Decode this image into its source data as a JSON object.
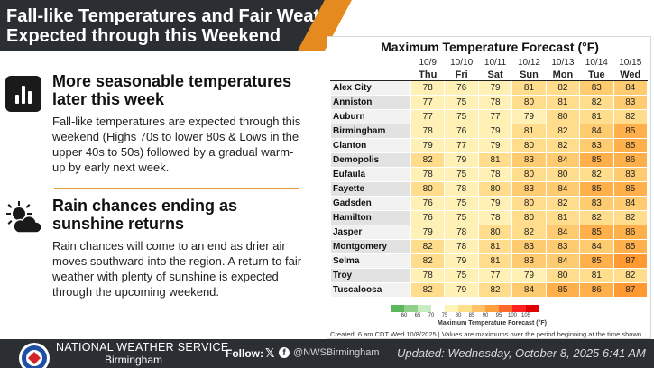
{
  "header": {
    "title_line1": "Fall-like Temperatures and Fair Weather",
    "title_line2": "Expected through this Weekend"
  },
  "sections": [
    {
      "icon": "bar-chart-icon",
      "title": "More seasonable temperatures later this week",
      "body": "Fall-like temperatures are expected through this weekend (Highs 70s to lower 80s & Lows in the upper 40s to 50s) followed by a gradual warm-up by early next week."
    },
    {
      "icon": "partly-cloudy-icon",
      "title": "Rain chances ending as sunshine returns",
      "body": "Rain chances will come to an end as drier air moves southward into the region. A return to fair weather with plenty of sunshine is expected through the upcoming weekend."
    }
  ],
  "forecast": {
    "title": "Maximum Temperature Forecast (°F)",
    "dates": [
      "10/9",
      "10/10",
      "10/11",
      "10/12",
      "10/13",
      "10/14",
      "10/15"
    ],
    "days": [
      "Thu",
      "Fri",
      "Sat",
      "Sun",
      "Mon",
      "Tue",
      "Wed"
    ],
    "rows": [
      {
        "city": "Alex City",
        "values": [
          78,
          76,
          79,
          81,
          82,
          83,
          84
        ]
      },
      {
        "city": "Anniston",
        "values": [
          77,
          75,
          78,
          80,
          81,
          82,
          83
        ]
      },
      {
        "city": "Auburn",
        "values": [
          77,
          75,
          77,
          79,
          80,
          81,
          82
        ]
      },
      {
        "city": "Birmingham",
        "values": [
          78,
          76,
          79,
          81,
          82,
          84,
          85
        ]
      },
      {
        "city": "Clanton",
        "values": [
          79,
          77,
          79,
          80,
          82,
          83,
          85
        ]
      },
      {
        "city": "Demopolis",
        "values": [
          82,
          79,
          81,
          83,
          84,
          85,
          86
        ]
      },
      {
        "city": "Eufaula",
        "values": [
          78,
          75,
          78,
          80,
          80,
          82,
          83
        ]
      },
      {
        "city": "Fayette",
        "values": [
          80,
          78,
          80,
          83,
          84,
          85,
          85
        ]
      },
      {
        "city": "Gadsden",
        "values": [
          76,
          75,
          79,
          80,
          82,
          83,
          84
        ]
      },
      {
        "city": "Hamilton",
        "values": [
          76,
          75,
          78,
          80,
          81,
          82,
          82
        ]
      },
      {
        "city": "Jasper",
        "values": [
          79,
          78,
          80,
          82,
          84,
          85,
          86
        ]
      },
      {
        "city": "Montgomery",
        "values": [
          82,
          78,
          81,
          83,
          83,
          84,
          85
        ]
      },
      {
        "city": "Selma",
        "values": [
          82,
          79,
          81,
          83,
          84,
          85,
          87
        ]
      },
      {
        "city": "Troy",
        "values": [
          78,
          75,
          77,
          79,
          80,
          81,
          82
        ]
      },
      {
        "city": "Tuscaloosa",
        "values": [
          82,
          79,
          82,
          84,
          85,
          86,
          87
        ]
      }
    ],
    "legend": {
      "ticks": [
        "60",
        "65",
        "70",
        "75",
        "80",
        "85",
        "90",
        "95",
        "100",
        "105"
      ],
      "colors": [
        "#5cb85c",
        "#8fd08a",
        "#c9ebc0",
        "#ffffff",
        "#fff4b8",
        "#ffe08a",
        "#ffc266",
        "#ffa040",
        "#ff6a2a",
        "#ff2020",
        "#e00000"
      ],
      "label": "Maximum Temperature Forecast (°F)"
    },
    "footnote": "Created: 6 am CDT Wed 10/8/2025  |  Values are maximums over the period beginning at the time shown."
  },
  "footer": {
    "org_line1": "NATIONAL WEATHER SERVICE",
    "org_line2": "Birmingham",
    "follow_label": "Follow:",
    "x_glyph": "𝕏",
    "fb_glyph": "f",
    "handle": "@NWSBirmingham",
    "updated": "Updated: Wednesday, October 8, 2025 6:41 AM"
  }
}
